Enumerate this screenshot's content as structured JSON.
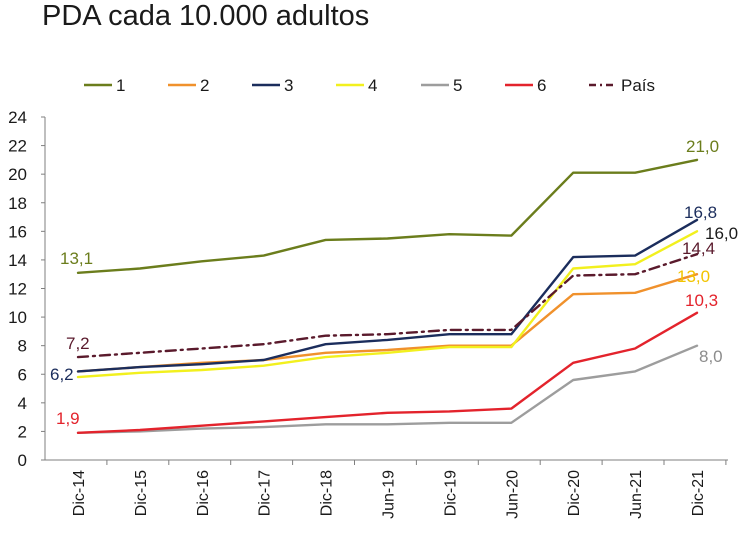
{
  "chart_data": {
    "type": "line",
    "title": "PDA cada 10.000 adultos",
    "xlabel": "",
    "ylabel": "",
    "ylim": [
      0,
      24
    ],
    "yticks": [
      0,
      2,
      4,
      6,
      8,
      10,
      12,
      14,
      16,
      18,
      20,
      22,
      24
    ],
    "categories": [
      "Dic-14",
      "Dic-15",
      "Dic-16",
      "Dic-17",
      "Dic-18",
      "Jun-19",
      "Dic-19",
      "Jun-20",
      "Dic-20",
      "Jun-21",
      "Dic-21"
    ],
    "legend_position": "top",
    "series": [
      {
        "name": "1",
        "color": "#6b7d1c",
        "dash": "solid",
        "values": [
          13.1,
          13.4,
          13.9,
          14.3,
          15.4,
          15.5,
          15.8,
          15.7,
          20.1,
          20.1,
          21.0
        ],
        "labels": {
          "first": "13,1",
          "last": "21,0"
        }
      },
      {
        "name": "2",
        "color": "#f0912c",
        "dash": "solid",
        "values": [
          6.2,
          6.5,
          6.8,
          7.0,
          7.5,
          7.7,
          8.0,
          8.0,
          11.6,
          11.7,
          13.0
        ],
        "labels": {
          "last": "13,0"
        }
      },
      {
        "name": "3",
        "color": "#1b2d5c",
        "dash": "solid",
        "values": [
          6.2,
          6.5,
          6.7,
          7.0,
          8.1,
          8.4,
          8.8,
          8.8,
          14.2,
          14.3,
          16.8
        ],
        "labels": {
          "first": "6,2",
          "last": "16,8"
        }
      },
      {
        "name": "4",
        "color": "#f2f01e",
        "dash": "solid",
        "values": [
          5.8,
          6.1,
          6.3,
          6.6,
          7.2,
          7.5,
          7.9,
          7.9,
          13.4,
          13.7,
          16.0
        ],
        "labels": {
          "last": "16,0"
        }
      },
      {
        "name": "5",
        "color": "#9d9d9d",
        "dash": "solid",
        "values": [
          1.9,
          2.0,
          2.2,
          2.3,
          2.5,
          2.5,
          2.6,
          2.6,
          5.6,
          6.2,
          8.0
        ],
        "labels": {
          "last": "8,0"
        }
      },
      {
        "name": "6",
        "color": "#e3232c",
        "dash": "solid",
        "values": [
          1.9,
          2.1,
          2.4,
          2.7,
          3.0,
          3.3,
          3.4,
          3.6,
          6.8,
          7.8,
          10.3
        ],
        "labels": {
          "first": "1,9",
          "last": "10,3"
        }
      },
      {
        "name": "País",
        "color": "#5a1a2c",
        "dash": "dashdot",
        "values": [
          7.2,
          7.5,
          7.8,
          8.1,
          8.7,
          8.8,
          9.1,
          9.1,
          12.9,
          13.0,
          14.4
        ],
        "labels": {
          "first": "7,2",
          "last": "14,4"
        }
      }
    ]
  }
}
